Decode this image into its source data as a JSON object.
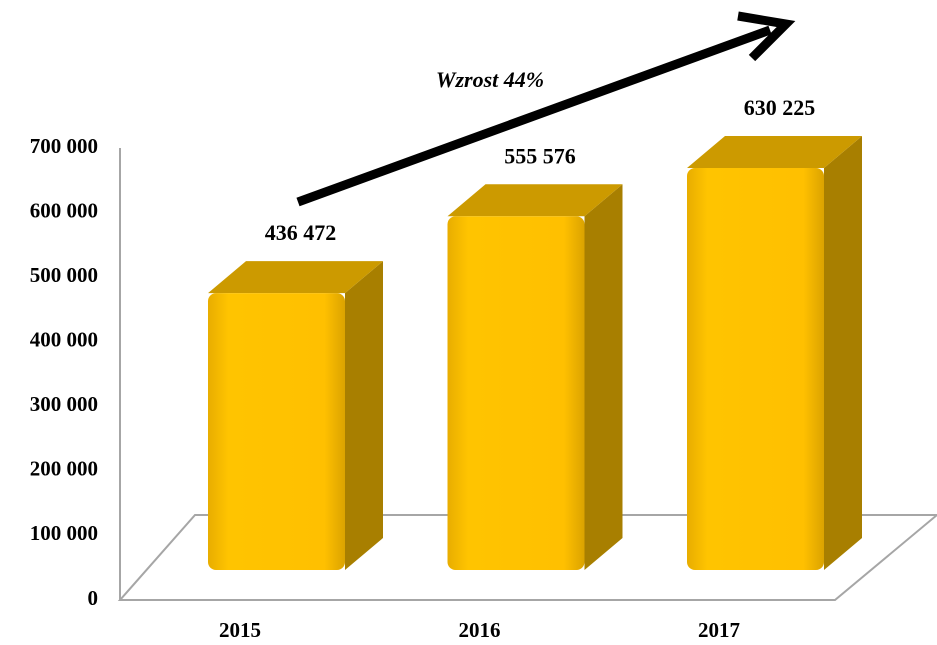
{
  "chart_data": {
    "type": "bar",
    "annotation": "Wzrost 44%",
    "categories": [
      "2015",
      "2016",
      "2017"
    ],
    "values": [
      436472,
      555576,
      630225
    ],
    "value_labels": [
      "436 472",
      "555 576",
      "630 225"
    ],
    "color": "#ffc000",
    "ylim": [
      0,
      700000
    ],
    "yticks": [
      0,
      {
        "value": 100000,
        "label": "100 000"
      },
      {
        "value": 200000,
        "label": "200 000"
      },
      {
        "value": 300000,
        "label": "300 000"
      },
      {
        "value": 400000,
        "label": "400 000"
      },
      {
        "value": 500000,
        "label": "500 000"
      },
      {
        "value": 600000,
        "label": "600 000"
      },
      {
        "value": 700000,
        "label": "700 000"
      }
    ]
  }
}
